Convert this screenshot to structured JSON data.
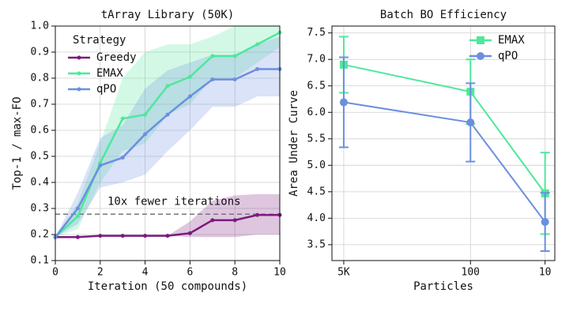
{
  "chart_data": [
    {
      "type": "line",
      "title": "tArray Library (50K)",
      "xlabel": "Iteration (50 compounds)",
      "ylabel": "Top-1 / max-FO",
      "x": [
        0,
        1,
        2,
        3,
        4,
        5,
        6,
        7,
        8,
        9,
        10
      ],
      "xlim": [
        0,
        10
      ],
      "xticks": [
        0,
        2,
        4,
        6,
        8,
        10
      ],
      "ylim": [
        0.1,
        1
      ],
      "yticks": [
        0.1,
        0.2,
        0.3,
        0.4,
        0.5,
        0.6,
        0.7,
        0.8,
        0.9,
        {
          "value": 1,
          "label": "1.0"
        }
      ],
      "grid": true,
      "legend": "upper left",
      "legend_title": "Strategy",
      "reference_line": {
        "y": 0.278,
        "label": "10x fewer iterations"
      },
      "series": [
        {
          "name": "Greedy",
          "color": "#7b1a7e",
          "values": [
            0.19,
            0.19,
            0.195,
            0.195,
            0.195,
            0.195,
            0.205,
            0.255,
            0.255,
            0.275,
            0.275
          ],
          "lower": [
            0.19,
            0.19,
            0.195,
            0.195,
            0.195,
            0.195,
            0.19,
            0.19,
            0.19,
            0.2,
            0.2
          ],
          "upper": [
            0.19,
            0.19,
            0.195,
            0.195,
            0.195,
            0.195,
            0.25,
            0.33,
            0.35,
            0.355,
            0.355
          ]
        },
        {
          "name": "EMAX",
          "color": "#4ee89a",
          "values": [
            0.19,
            0.27,
            0.475,
            0.645,
            0.66,
            0.77,
            0.805,
            0.885,
            0.885,
            0.93,
            0.975
          ],
          "lower": [
            0.19,
            0.22,
            0.4,
            0.52,
            0.55,
            0.66,
            0.7,
            0.8,
            0.8,
            0.86,
            0.92
          ],
          "upper": [
            0.19,
            0.32,
            0.55,
            0.8,
            0.9,
            0.93,
            0.93,
            0.96,
            1,
            1,
            1
          ]
        },
        {
          "name": "qPO",
          "color": "#6b8fe0",
          "values": [
            0.19,
            0.3,
            0.465,
            0.495,
            0.585,
            0.66,
            0.73,
            0.795,
            0.795,
            0.835,
            0.835
          ],
          "lower": [
            0.19,
            0.24,
            0.38,
            0.4,
            0.43,
            0.52,
            0.6,
            0.69,
            0.69,
            0.73,
            0.73
          ],
          "upper": [
            0.19,
            0.36,
            0.57,
            0.62,
            0.76,
            0.83,
            0.86,
            0.89,
            0.89,
            0.93,
            0.96
          ]
        }
      ]
    },
    {
      "type": "errorbar",
      "title": "Batch BO Efficiency",
      "xlabel": "Particles",
      "ylabel": "Area Under Curve",
      "x": [
        5000,
        100,
        10
      ],
      "xscale": "log",
      "xlim": [
        7200,
        7.4
      ],
      "xticks": [
        {
          "value": 5000,
          "label": "5K"
        },
        100,
        10
      ],
      "ylim": [
        3.2,
        7.63
      ],
      "yticks": [
        3.5,
        {
          "value": 4,
          "label": "4.0"
        },
        4.5,
        {
          "value": 5,
          "label": "5.0"
        },
        5.5,
        {
          "value": 6,
          "label": "6.0"
        },
        6.5,
        {
          "value": 7,
          "label": "7.0"
        },
        7.5
      ],
      "grid": true,
      "legend": "upper right",
      "series": [
        {
          "name": "EMAX",
          "color": "#4ee89a",
          "marker": "square",
          "values": [
            6.9,
            6.39,
            4.47
          ],
          "errors": [
            0.53,
            0.61,
            0.77
          ]
        },
        {
          "name": "qPO",
          "color": "#6b8fe0",
          "marker": "circle",
          "values": [
            6.19,
            5.81,
            3.93
          ],
          "errors": [
            0.85,
            0.74,
            0.55
          ]
        }
      ]
    }
  ]
}
